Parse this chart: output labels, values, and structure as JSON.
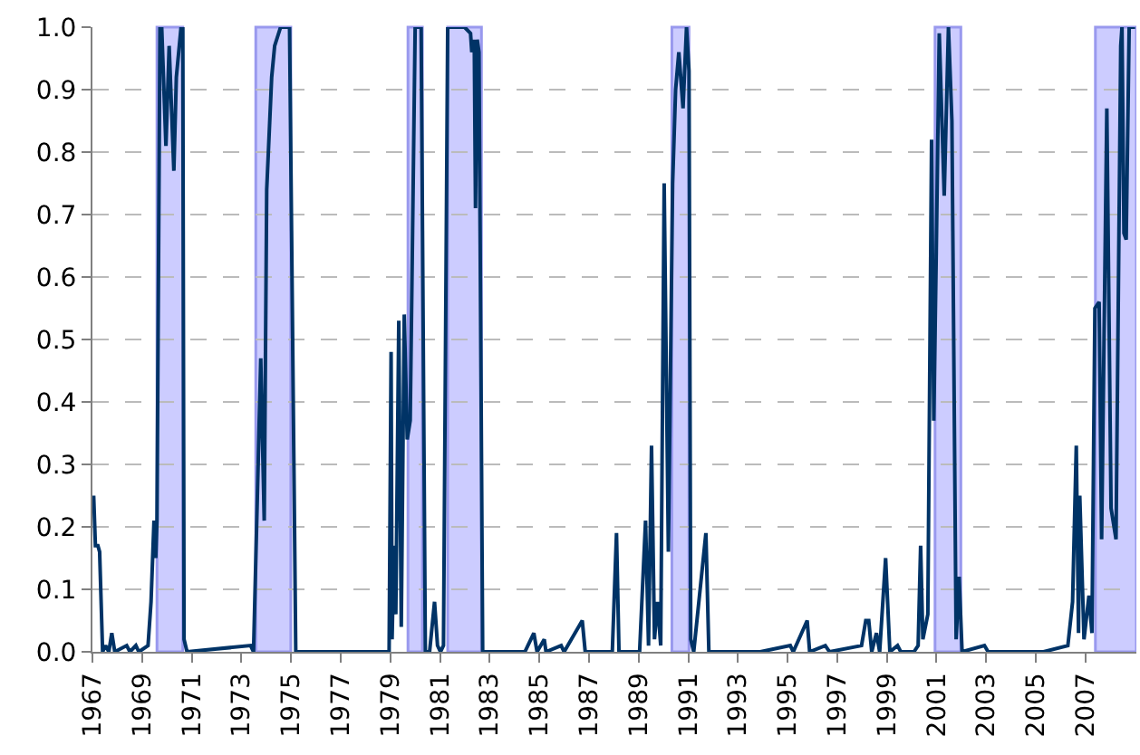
{
  "chart_data": {
    "type": "line",
    "x": [
      1967.05,
      1967.12,
      1967.22,
      1967.29,
      1967.41,
      1967.53,
      1967.66,
      1967.78,
      1967.9,
      1968.38,
      1968.51,
      1968.75,
      1968.87,
      1969.24,
      1969.36,
      1969.48,
      1969.55,
      1969.6,
      1969.72,
      1969.79,
      1969.96,
      1970.09,
      1970.28,
      1970.38,
      1970.57,
      1970.64,
      1970.69,
      1970.81,
      1973.37,
      1973.49,
      1973.78,
      1973.92,
      1974.02,
      1974.22,
      1974.34,
      1974.58,
      1974.94,
      1975.19,
      1978.95,
      1979.03,
      1979.07,
      1979.15,
      1979.22,
      1979.34,
      1979.44,
      1979.56,
      1979.68,
      1979.8,
      1980.0,
      1980.24,
      1980.41,
      1980.58,
      1980.78,
      1980.9,
      1981.02,
      1981.14,
      1981.31,
      1981.99,
      1982.23,
      1982.28,
      1982.38,
      1982.43,
      1982.5,
      1982.57,
      1982.72,
      1984.42,
      1984.54,
      1984.78,
      1984.91,
      1985.2,
      1985.27,
      1985.88,
      1986.0,
      1986.73,
      1986.85,
      1987.94,
      1988.11,
      1988.21,
      1989.04,
      1989.28,
      1989.4,
      1989.52,
      1989.64,
      1989.76,
      1989.89,
      1990.03,
      1990.2,
      1990.37,
      1990.49,
      1990.62,
      1990.79,
      1990.93,
      1991.03,
      1991.1,
      1991.22,
      1991.71,
      1991.83,
      1993.9,
      1995.11,
      1995.23,
      1995.79,
      1995.89,
      1996.52,
      1996.69,
      1997.98,
      1998.15,
      1998.27,
      1998.39,
      1998.58,
      1998.71,
      1998.95,
      1999.12,
      1999.43,
      1999.56,
      2000.09,
      2000.26,
      2000.36,
      2000.45,
      2000.65,
      2000.8,
      2000.89,
      2000.99,
      2001.11,
      2001.31,
      2001.48,
      2001.62,
      2001.79,
      2001.91,
      2002.03,
      2002.93,
      2003.08,
      2005.31,
      2006.29,
      2006.48,
      2006.63,
      2006.72,
      2006.77,
      2006.94,
      2007.14,
      2007.26,
      2007.38,
      2007.55,
      2007.65,
      2007.86,
      2008.03,
      2008.23,
      2008.42,
      2008.47,
      2008.55,
      2008.64,
      2008.76,
      2009.0
    ],
    "values": [
      0.25,
      0.17,
      0.17,
      0.16,
      0,
      0.01,
      0,
      0.03,
      0,
      0.01,
      0,
      0.01,
      0,
      0.01,
      0.08,
      0.21,
      0.15,
      0.21,
      1,
      1,
      0.81,
      0.97,
      0.77,
      0.92,
      1,
      1,
      0.02,
      0,
      0.01,
      0,
      0.47,
      0.21,
      0.74,
      0.92,
      0.97,
      1,
      1,
      0,
      0,
      0.48,
      0.02,
      0.17,
      0.06,
      0.53,
      0.04,
      0.54,
      0.34,
      0.37,
      1,
      1,
      0,
      0,
      0.08,
      0.01,
      0,
      0.01,
      1,
      1,
      0.99,
      0.96,
      0.98,
      0.71,
      0.98,
      0.96,
      0,
      0,
      0.01,
      0.03,
      0,
      0.02,
      0,
      0.01,
      0,
      0.05,
      0,
      0,
      0.19,
      0,
      0,
      0.21,
      0.01,
      0.33,
      0.02,
      0.08,
      0.01,
      0.75,
      0.16,
      0.75,
      0.9,
      0.96,
      0.87,
      1,
      0.93,
      0.02,
      0,
      0.19,
      0,
      0,
      0.01,
      0,
      0.05,
      0,
      0.01,
      0,
      0.01,
      0.05,
      0.05,
      0,
      0.03,
      0,
      0.15,
      0,
      0.01,
      0,
      0,
      0.01,
      0.17,
      0.02,
      0.06,
      0.82,
      0.37,
      0.64,
      0.99,
      0.73,
      1,
      0.85,
      0.02,
      0.12,
      0,
      0.01,
      0,
      0,
      0.01,
      0.08,
      0.33,
      0.03,
      0.25,
      0.02,
      0.09,
      0.03,
      0.55,
      0.56,
      0.18,
      0.87,
      0.23,
      0.18,
      0.97,
      1,
      0.67,
      0.66,
      1,
      1
    ],
    "color": "#003366",
    "xlim": [
      1967,
      2009.05
    ],
    "xticks": [
      1967,
      1969,
      1971,
      1973,
      1975,
      1977,
      1979,
      1981,
      1983,
      1985,
      1987,
      1989,
      1991,
      1993,
      1995,
      1997,
      1999,
      2001,
      2003,
      2005,
      2007
    ],
    "ylim": [
      0,
      1
    ],
    "yticks": [
      {
        "value": 0,
        "label": "0.0"
      },
      0.1,
      0.2,
      0.3,
      0.4,
      0.5,
      0.6,
      0.7,
      0.8,
      0.9,
      {
        "value": 1,
        "label": "1.0"
      }
    ],
    "bands": [
      {
        "axis": "x",
        "from": 1969.6,
        "to": 1970.64,
        "color": "#ccccff"
      },
      {
        "axis": "x",
        "from": 1973.58,
        "to": 1974.99,
        "color": "#ccccff"
      },
      {
        "axis": "x",
        "from": 1979.71,
        "to": 1980.29,
        "color": "#ccccff"
      },
      {
        "axis": "x",
        "from": 1981.31,
        "to": 1982.67,
        "color": "#ccccff"
      },
      {
        "axis": "x",
        "from": 1990.34,
        "to": 1991.03,
        "color": "#ccccff"
      },
      {
        "axis": "x",
        "from": 2000.94,
        "to": 2001.98,
        "color": "#ccccff"
      },
      {
        "axis": "x",
        "from": 2007.4,
        "to": 2009.05,
        "color": "#ccccff"
      }
    ],
    "grid": "y",
    "legend": false,
    "marker": "none",
    "line_style": "solid"
  }
}
